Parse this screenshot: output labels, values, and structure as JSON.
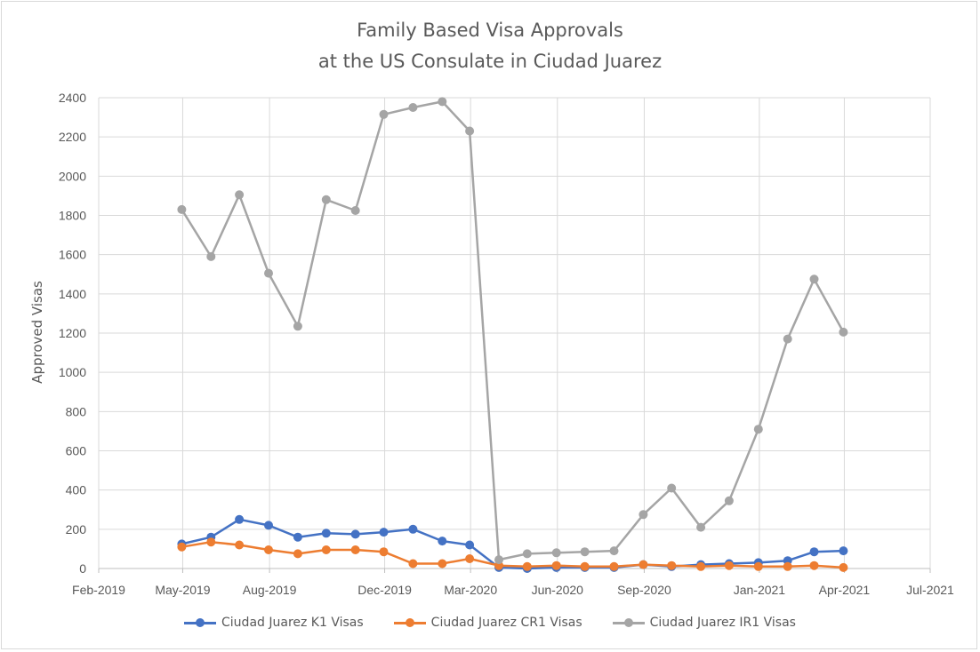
{
  "chart_data": {
    "type": "line",
    "title": "Family Based Visa Approvals",
    "subtitle": "at the US Consulate in Ciudad Juarez",
    "xlabel": "",
    "ylabel": "Approved Visas",
    "ylim": [
      0,
      2400
    ],
    "yticks": [
      "0",
      "200",
      "400",
      "600",
      "800",
      "1000",
      "1200",
      "1400",
      "1600",
      "1800",
      "2000",
      "2200",
      "2400"
    ],
    "xlim": [
      "2019-02-01",
      "2021-07-01"
    ],
    "xticks": [
      {
        "date": "2019-02-01",
        "label": "Feb-2019"
      },
      {
        "date": "2019-05-01",
        "label": "May-2019"
      },
      {
        "date": "2019-08-01",
        "label": "Aug-2019"
      },
      {
        "date": "2019-12-01",
        "label": "Dec-2019"
      },
      {
        "date": "2020-03-01",
        "label": "Mar-2020"
      },
      {
        "date": "2020-06-01",
        "label": "Jun-2020"
      },
      {
        "date": "2020-09-01",
        "label": "Sep-2020"
      },
      {
        "date": "2021-01-01",
        "label": "Jan-2021"
      },
      {
        "date": "2021-04-01",
        "label": "Apr-2021"
      },
      {
        "date": "2021-07-01",
        "label": "Jul-2021"
      }
    ],
    "grid": true,
    "legend": "bottom",
    "x": [
      "2019-04-30",
      "2019-05-31",
      "2019-06-30",
      "2019-07-31",
      "2019-08-31",
      "2019-09-30",
      "2019-10-31",
      "2019-11-30",
      "2019-12-31",
      "2020-01-31",
      "2020-02-29",
      "2020-03-31",
      "2020-04-30",
      "2020-05-31",
      "2020-06-30",
      "2020-07-31",
      "2020-08-31",
      "2020-09-30",
      "2020-10-31",
      "2020-11-30",
      "2020-12-31",
      "2021-01-31",
      "2021-02-28",
      "2021-03-31"
    ],
    "series": [
      {
        "name": "Ciudad Juarez K1 Visas",
        "color": "#4472c4",
        "values": [
          125,
          160,
          250,
          220,
          160,
          180,
          175,
          185,
          200,
          140,
          120,
          5,
          0,
          5,
          5,
          5,
          20,
          10,
          20,
          25,
          30,
          40,
          85,
          90
        ]
      },
      {
        "name": "Ciudad Juarez CR1 Visas",
        "color": "#ed7d31",
        "values": [
          110,
          135,
          120,
          95,
          75,
          95,
          95,
          85,
          25,
          25,
          50,
          15,
          10,
          15,
          10,
          10,
          20,
          15,
          10,
          15,
          10,
          10,
          15,
          5
        ]
      },
      {
        "name": "Ciudad Juarez IR1 Visas",
        "color": "#a5a5a5",
        "values": [
          1830,
          1590,
          1905,
          1505,
          1235,
          1880,
          1825,
          2315,
          2350,
          2380,
          2230,
          45,
          75,
          80,
          85,
          90,
          275,
          410,
          210,
          345,
          710,
          1170,
          1475,
          1205
        ]
      }
    ]
  }
}
